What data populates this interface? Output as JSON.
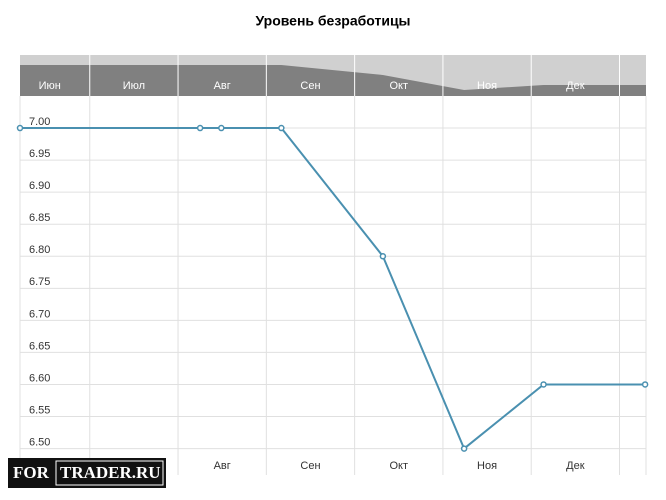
{
  "chart_data": {
    "type": "line",
    "title": "Уровень безработицы",
    "categories": [
      "Июн",
      "Июл",
      "Авг",
      "Сен",
      "Окт",
      "Ноя",
      "Дек"
    ],
    "x": [
      0.21,
      2.25,
      2.49,
      3.17,
      4.32,
      5.24,
      6.14,
      7.29
    ],
    "series": [
      {
        "name": "Уровень безработицы",
        "color": "#4a90b0",
        "values": [
          7.0,
          7.0,
          7.0,
          7.0,
          6.8,
          6.5,
          6.6,
          6.6
        ]
      }
    ],
    "xlim": [
      0.21,
      7.3
    ],
    "xticks": [
      1,
      2,
      3,
      4,
      5,
      6,
      7
    ],
    "ylim": [
      6.49,
      7.05
    ],
    "yticks": [
      {
        "value": 7.0,
        "label": "7.00"
      },
      {
        "value": 6.95,
        "label": "6.95"
      },
      {
        "value": 6.9,
        "label": "6.90"
      },
      {
        "value": 6.85,
        "label": "6.85"
      },
      {
        "value": 6.8,
        "label": "6.80"
      },
      {
        "value": 6.75,
        "label": "6.75"
      },
      {
        "value": 6.7,
        "label": "6.70"
      },
      {
        "value": 6.65,
        "label": "6.65"
      },
      {
        "value": 6.6,
        "label": "6.60"
      },
      {
        "value": 6.55,
        "label": "6.55"
      },
      {
        "value": 6.5,
        "label": "6.50"
      }
    ],
    "grid": true,
    "watermark": [
      "FOR",
      "TRADER.RU"
    ]
  }
}
